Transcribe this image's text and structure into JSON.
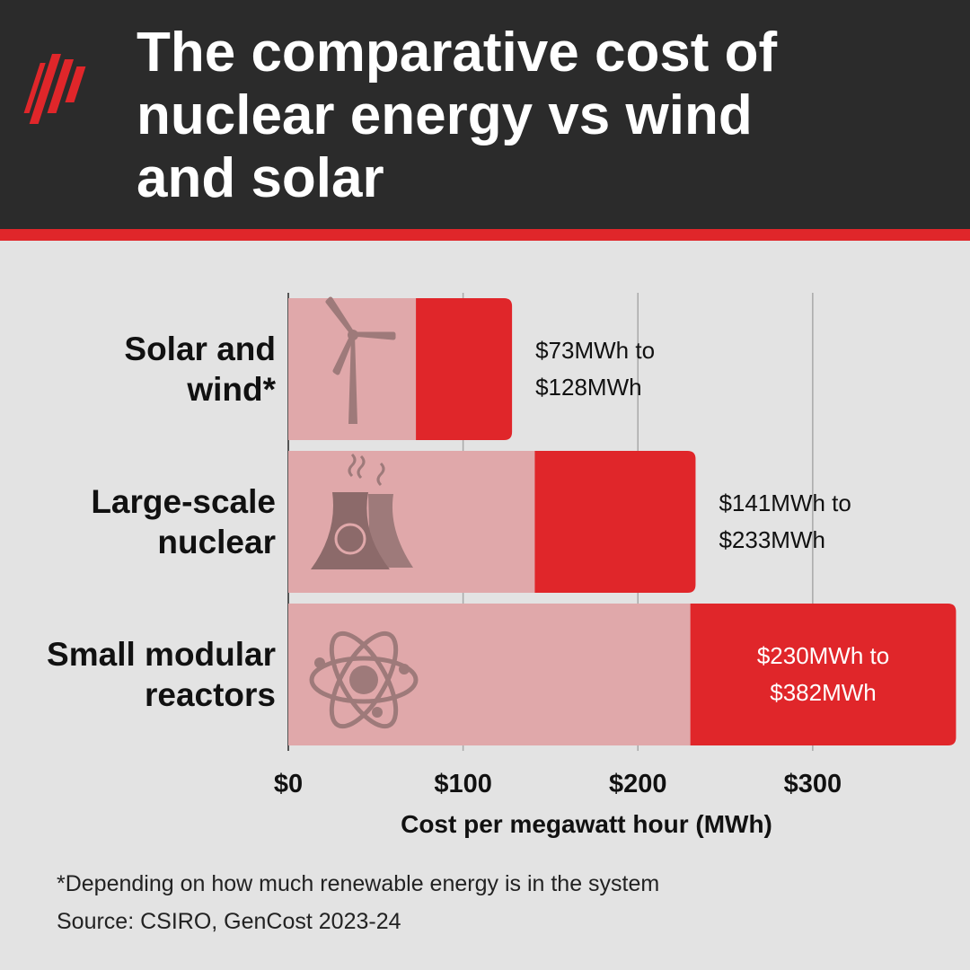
{
  "chart_data": {
    "type": "bar",
    "title": "The comparative cost of nuclear energy vs wind and solar",
    "categories": [
      "Solar and wind*",
      "Large-scale nuclear",
      "Small modular reactors"
    ],
    "low": [
      73,
      141,
      230
    ],
    "high": [
      128,
      233,
      382
    ],
    "value_labels": [
      "$73MWh to $128MWh",
      "$141MWh to $233MWh",
      "$230MWh to $382MWh"
    ],
    "low_color": "#e0a8aa",
    "color": "#e0262a",
    "xlim": [
      0,
      390
    ],
    "xticks": [
      {
        "value": 0,
        "label": "$0"
      },
      {
        "value": 100,
        "label": "$100"
      },
      {
        "value": 200,
        "label": "$200"
      },
      {
        "value": 300,
        "label": "$300"
      }
    ],
    "grid": true,
    "x_label": "Cost per megawatt hour (MWh)",
    "footnote": "*Depending on how much renewable energy is in the system",
    "source": "Source: CSIRO, GenCost 2023-24"
  }
}
